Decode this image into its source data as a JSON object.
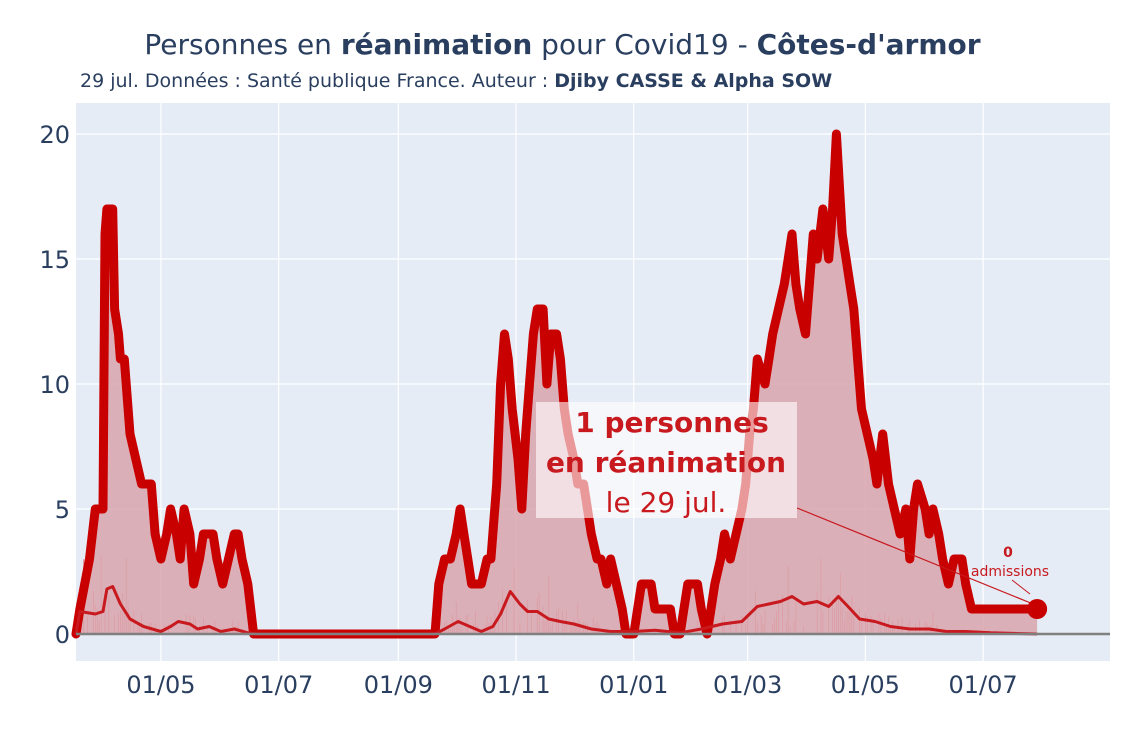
{
  "title": {
    "part1": "Personnes en ",
    "part2": "réanimation",
    "part3": " pour Covid19 - ",
    "part4": "Côtes-d'armor"
  },
  "subtitle": {
    "part1": "29 jul. Données : Santé publique France. Auteur : ",
    "part2": "Djiby CASSE & Alpha SOW"
  },
  "annotation": {
    "line1": "1 personnes",
    "line2": "en réanimation",
    "line3": "le 29 jul.",
    "admissions_value": "0",
    "admissions_label": "admissions"
  },
  "colors": {
    "main_line": "#c80000",
    "fill": "#d9a4ad",
    "plot_bg": "#e5ecf6",
    "grid": "#ffffff",
    "admissions_line": "#c8191e",
    "spikes": "#e05050",
    "zero_line": "#808080"
  },
  "chart_data": {
    "type": "line",
    "x_start": "2020-03-18",
    "ylim": [
      0,
      20
    ],
    "yticks": [
      0,
      5,
      10,
      15,
      20
    ],
    "xticks": [
      {
        "date": "2020-05-01",
        "label": "01/05"
      },
      {
        "date": "2020-07-01",
        "label": "01/07"
      },
      {
        "date": "2020-09-01",
        "label": "01/09"
      },
      {
        "date": "2020-11-01",
        "label": "01/11"
      },
      {
        "date": "2021-01-01",
        "label": "01/01"
      },
      {
        "date": "2021-03-01",
        "label": "01/03"
      },
      {
        "date": "2021-05-01",
        "label": "01/05"
      },
      {
        "date": "2021-07-01",
        "label": "01/07"
      }
    ],
    "series": [
      {
        "points": [
          [
            "2020-03-18",
            0
          ],
          [
            "2020-03-20",
            1
          ],
          [
            "2020-03-25",
            3
          ],
          [
            "2020-03-28",
            5
          ],
          [
            "2020-04-01",
            5
          ],
          [
            "2020-04-02",
            16
          ],
          [
            "2020-04-03",
            17
          ],
          [
            "2020-04-06",
            17
          ],
          [
            "2020-04-07",
            13
          ],
          [
            "2020-04-09",
            12
          ],
          [
            "2020-04-10",
            11
          ],
          [
            "2020-04-12",
            11
          ],
          [
            "2020-04-15",
            8
          ],
          [
            "2020-04-18",
            7
          ],
          [
            "2020-04-21",
            6
          ],
          [
            "2020-04-26",
            6
          ],
          [
            "2020-04-28",
            4
          ],
          [
            "2020-05-01",
            3
          ],
          [
            "2020-05-04",
            4
          ],
          [
            "2020-05-06",
            5
          ],
          [
            "2020-05-09",
            4
          ],
          [
            "2020-05-11",
            3
          ],
          [
            "2020-05-13",
            5
          ],
          [
            "2020-05-16",
            4
          ],
          [
            "2020-05-18",
            2
          ],
          [
            "2020-05-21",
            3
          ],
          [
            "2020-05-23",
            4
          ],
          [
            "2020-05-28",
            4
          ],
          [
            "2020-05-30",
            3
          ],
          [
            "2020-06-02",
            2
          ],
          [
            "2020-06-05",
            3
          ],
          [
            "2020-06-08",
            4
          ],
          [
            "2020-06-10",
            4
          ],
          [
            "2020-06-12",
            3
          ],
          [
            "2020-06-15",
            2
          ],
          [
            "2020-06-18",
            0
          ],
          [
            "2020-09-20",
            0
          ],
          [
            "2020-09-22",
            2
          ],
          [
            "2020-09-25",
            3
          ],
          [
            "2020-09-28",
            3
          ],
          [
            "2020-10-01",
            4
          ],
          [
            "2020-10-03",
            5
          ],
          [
            "2020-10-05",
            4
          ],
          [
            "2020-10-07",
            3
          ],
          [
            "2020-10-09",
            2
          ],
          [
            "2020-10-14",
            2
          ],
          [
            "2020-10-17",
            3
          ],
          [
            "2020-10-19",
            3
          ],
          [
            "2020-10-22",
            6
          ],
          [
            "2020-10-24",
            10
          ],
          [
            "2020-10-26",
            12
          ],
          [
            "2020-10-28",
            11
          ],
          [
            "2020-10-30",
            9
          ],
          [
            "2020-11-02",
            7
          ],
          [
            "2020-11-04",
            5
          ],
          [
            "2020-11-06",
            8
          ],
          [
            "2020-11-08",
            10
          ],
          [
            "2020-11-10",
            12
          ],
          [
            "2020-11-12",
            13
          ],
          [
            "2020-11-15",
            13
          ],
          [
            "2020-11-17",
            10
          ],
          [
            "2020-11-19",
            12
          ],
          [
            "2020-11-22",
            12
          ],
          [
            "2020-11-24",
            11
          ],
          [
            "2020-11-26",
            9
          ],
          [
            "2020-11-28",
            8
          ],
          [
            "2020-12-01",
            7
          ],
          [
            "2020-12-03",
            6
          ],
          [
            "2020-12-06",
            6
          ],
          [
            "2020-12-08",
            5
          ],
          [
            "2020-12-10",
            4
          ],
          [
            "2020-12-13",
            3
          ],
          [
            "2020-12-15",
            3
          ],
          [
            "2020-12-18",
            2
          ],
          [
            "2020-12-20",
            3
          ],
          [
            "2020-12-23",
            2
          ],
          [
            "2020-12-26",
            1
          ],
          [
            "2020-12-28",
            0
          ],
          [
            "2021-01-01",
            0
          ],
          [
            "2021-01-03",
            1
          ],
          [
            "2021-01-05",
            2
          ],
          [
            "2021-01-10",
            2
          ],
          [
            "2021-01-12",
            1
          ],
          [
            "2021-01-20",
            1
          ],
          [
            "2021-01-22",
            0
          ],
          [
            "2021-01-25",
            0
          ],
          [
            "2021-01-27",
            1
          ],
          [
            "2021-01-29",
            2
          ],
          [
            "2021-02-03",
            2
          ],
          [
            "2021-02-05",
            1
          ],
          [
            "2021-02-08",
            0
          ],
          [
            "2021-02-10",
            1
          ],
          [
            "2021-02-12",
            2
          ],
          [
            "2021-02-15",
            3
          ],
          [
            "2021-02-17",
            4
          ],
          [
            "2021-02-20",
            3
          ],
          [
            "2021-02-23",
            4
          ],
          [
            "2021-02-26",
            5
          ],
          [
            "2021-02-28",
            6
          ],
          [
            "2021-03-02",
            8
          ],
          [
            "2021-03-04",
            9
          ],
          [
            "2021-03-06",
            11
          ],
          [
            "2021-03-10",
            10
          ],
          [
            "2021-03-12",
            11
          ],
          [
            "2021-03-14",
            12
          ],
          [
            "2021-03-17",
            13
          ],
          [
            "2021-03-20",
            14
          ],
          [
            "2021-03-22",
            15
          ],
          [
            "2021-03-24",
            16
          ],
          [
            "2021-03-26",
            14
          ],
          [
            "2021-03-28",
            13
          ],
          [
            "2021-03-31",
            12
          ],
          [
            "2021-04-02",
            14
          ],
          [
            "2021-04-04",
            16
          ],
          [
            "2021-04-06",
            15
          ],
          [
            "2021-04-09",
            17
          ],
          [
            "2021-04-12",
            15
          ],
          [
            "2021-04-14",
            17
          ],
          [
            "2021-04-16",
            20
          ],
          [
            "2021-04-19",
            16
          ],
          [
            "2021-04-21",
            15
          ],
          [
            "2021-04-23",
            14
          ],
          [
            "2021-04-25",
            13
          ],
          [
            "2021-04-27",
            11
          ],
          [
            "2021-04-29",
            9
          ],
          [
            "2021-05-02",
            8
          ],
          [
            "2021-05-05",
            7
          ],
          [
            "2021-05-07",
            6
          ],
          [
            "2021-05-10",
            8
          ],
          [
            "2021-05-13",
            6
          ],
          [
            "2021-05-16",
            5
          ],
          [
            "2021-05-19",
            4
          ],
          [
            "2021-05-22",
            5
          ],
          [
            "2021-05-24",
            3
          ],
          [
            "2021-05-26",
            5
          ],
          [
            "2021-05-28",
            6
          ],
          [
            "2021-06-01",
            5
          ],
          [
            "2021-06-03",
            4
          ],
          [
            "2021-06-05",
            5
          ],
          [
            "2021-06-08",
            4
          ],
          [
            "2021-06-10",
            3
          ],
          [
            "2021-06-13",
            2
          ],
          [
            "2021-06-16",
            3
          ],
          [
            "2021-06-20",
            3
          ],
          [
            "2021-06-22",
            2
          ],
          [
            "2021-06-25",
            1
          ],
          [
            "2021-07-29",
            1
          ]
        ]
      },
      {
        "points": [
          [
            "2020-03-18",
            0
          ],
          [
            "2020-03-20",
            0.9
          ],
          [
            "2020-03-28",
            0.8
          ],
          [
            "2020-04-01",
            0.9
          ],
          [
            "2020-04-03",
            1.8
          ],
          [
            "2020-04-06",
            1.9
          ],
          [
            "2020-04-10",
            1.2
          ],
          [
            "2020-04-15",
            0.6
          ],
          [
            "2020-04-22",
            0.3
          ],
          [
            "2020-05-01",
            0.1
          ],
          [
            "2020-05-06",
            0.3
          ],
          [
            "2020-05-10",
            0.5
          ],
          [
            "2020-05-16",
            0.4
          ],
          [
            "2020-05-20",
            0.2
          ],
          [
            "2020-05-26",
            0.3
          ],
          [
            "2020-06-01",
            0.1
          ],
          [
            "2020-06-08",
            0.2
          ],
          [
            "2020-06-15",
            0.05
          ],
          [
            "2020-06-20",
            0
          ],
          [
            "2020-09-20",
            0
          ],
          [
            "2020-09-25",
            0.2
          ],
          [
            "2020-10-02",
            0.5
          ],
          [
            "2020-10-08",
            0.3
          ],
          [
            "2020-10-14",
            0.1
          ],
          [
            "2020-10-20",
            0.3
          ],
          [
            "2020-10-24",
            0.8
          ],
          [
            "2020-10-29",
            1.7
          ],
          [
            "2020-11-03",
            1.2
          ],
          [
            "2020-11-07",
            0.9
          ],
          [
            "2020-11-12",
            0.9
          ],
          [
            "2020-11-18",
            0.6
          ],
          [
            "2020-11-24",
            0.5
          ],
          [
            "2020-12-01",
            0.4
          ],
          [
            "2020-12-10",
            0.2
          ],
          [
            "2020-12-20",
            0.1
          ],
          [
            "2021-01-01",
            0.1
          ],
          [
            "2021-01-12",
            0.15
          ],
          [
            "2021-01-25",
            0.05
          ],
          [
            "2021-02-05",
            0.2
          ],
          [
            "2021-02-16",
            0.4
          ],
          [
            "2021-02-26",
            0.5
          ],
          [
            "2021-03-06",
            1.1
          ],
          [
            "2021-03-12",
            1.2
          ],
          [
            "2021-03-18",
            1.3
          ],
          [
            "2021-03-24",
            1.5
          ],
          [
            "2021-03-30",
            1.2
          ],
          [
            "2021-04-06",
            1.3
          ],
          [
            "2021-04-12",
            1.1
          ],
          [
            "2021-04-17",
            1.5
          ],
          [
            "2021-04-22",
            1.1
          ],
          [
            "2021-04-28",
            0.6
          ],
          [
            "2021-05-06",
            0.5
          ],
          [
            "2021-05-14",
            0.3
          ],
          [
            "2021-05-24",
            0.2
          ],
          [
            "2021-06-03",
            0.2
          ],
          [
            "2021-06-12",
            0.1
          ],
          [
            "2021-06-22",
            0.1
          ],
          [
            "2021-07-05",
            0.05
          ],
          [
            "2021-07-29",
            0
          ]
        ]
      }
    ],
    "last_point": {
      "date": "2021-07-29",
      "value": 1
    }
  }
}
